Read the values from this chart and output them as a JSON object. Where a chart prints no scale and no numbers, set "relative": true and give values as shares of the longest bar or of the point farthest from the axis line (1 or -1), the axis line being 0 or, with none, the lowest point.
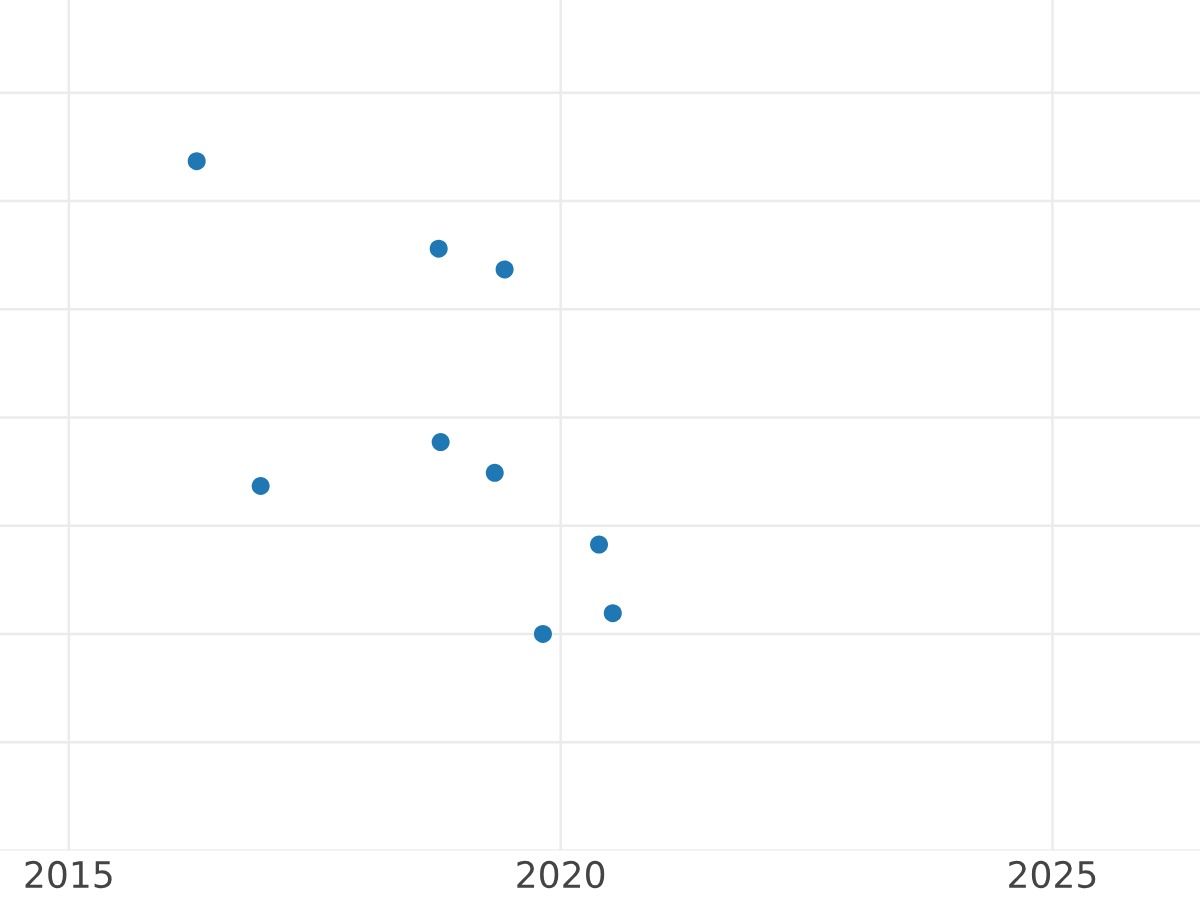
{
  "chart_data": {
    "type": "scatter",
    "relative": true,
    "x": [
      2016.3,
      2018.76,
      2019.43,
      2018.78,
      2016.95,
      2019.33,
      2020.39,
      2020.53,
      2019.82
    ],
    "series": [
      {
        "color": "#1f77b4",
        "values": [
          1.0,
          0.815,
          0.771,
          0.406,
          0.313,
          0.341,
          0.189,
          0.044,
          0.0
        ]
      }
    ],
    "xlim": [
      2014.3,
      2026.5
    ],
    "xticks": [
      2015,
      2020,
      2025
    ],
    "grid": true,
    "marker": "circle",
    "tick_labels": "x"
  }
}
